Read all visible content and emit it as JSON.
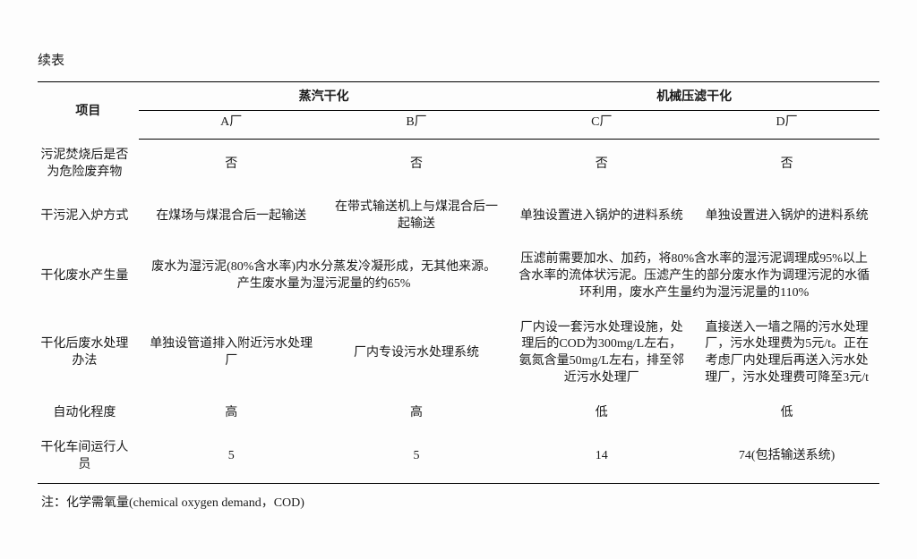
{
  "caption": "续表",
  "header": {
    "project": "项目",
    "group1": "蒸汽干化",
    "group2": "机械压滤干化",
    "colA": "A厂",
    "colB": "B厂",
    "colC": "C厂",
    "colD": "D厂"
  },
  "rows": {
    "r1": {
      "label": "污泥焚烧后是否为危险废弃物",
      "a": "否",
      "b": "否",
      "c": "否",
      "d": "否"
    },
    "r2": {
      "label": "干污泥入炉方式",
      "a": "在煤场与煤混合后一起输送",
      "b": "在带式输送机上与煤混合后一起输送",
      "c": "单独设置进入锅炉的进料系统",
      "d": "单独设置进入锅炉的进料系统"
    },
    "r3": {
      "label": "干化废水产生量",
      "ab": "废水为湿污泥(80%含水率)内水分蒸发冷凝形成，无其他来源。产生废水量为湿污泥量的约65%",
      "cd": "压滤前需要加水、加药，将80%含水率的湿污泥调理成95%以上含水率的流体状污泥。压滤产生的部分废水作为调理污泥的水循环利用，废水产生量约为湿污泥量的110%"
    },
    "r4": {
      "label": "干化后废水处理办法",
      "a": "单独设管道排入附近污水处理厂",
      "b": "厂内专设污水处理系统",
      "c": "厂内设一套污水处理设施，处理后的COD为300mg/L左右，氨氮含量50mg/L左右，排至邻近污水处理厂",
      "d": "直接送入一墙之隔的污水处理厂，污水处理费为5元/t。正在考虑厂内处理后再送入污水处理厂，污水处理费可降至3元/t"
    },
    "r5": {
      "label": "自动化程度",
      "a": "高",
      "b": "高",
      "c": "低",
      "d": "低"
    },
    "r6": {
      "label": "干化车间运行人员",
      "a": "5",
      "b": "5",
      "c": "14",
      "d": "74(包括输送系统)"
    }
  },
  "footnote": "注：化学需氧量(chemical oxygen demand，COD)",
  "style": {
    "background_color": "#fdfdfd",
    "text_color": "#1a1a1a",
    "border_color": "#000000",
    "font_family": "SimSun",
    "base_fontsize": 14,
    "caption_fontsize": 15,
    "col_widths_pct": [
      12,
      22,
      22,
      22,
      22
    ]
  }
}
